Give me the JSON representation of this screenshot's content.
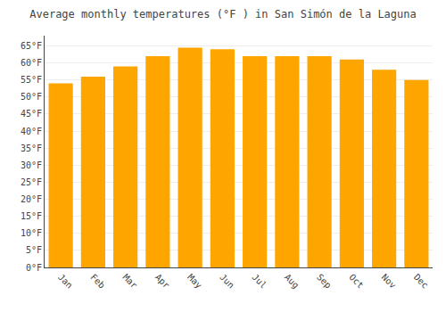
{
  "chart_data": {
    "type": "bar",
    "title": "Average monthly temperatures (°F ) in San Simón de la Laguna",
    "categories": [
      "Jan",
      "Feb",
      "Mar",
      "Apr",
      "May",
      "Jun",
      "Jul",
      "Aug",
      "Sep",
      "Oct",
      "Nov",
      "Dec"
    ],
    "values": [
      54,
      56,
      59,
      62,
      64.5,
      64,
      62,
      62,
      62,
      61,
      58,
      55
    ],
    "color": "#FFA500",
    "ylim": [
      0,
      68
    ],
    "yticks": [
      {
        "value": 0,
        "label": "0°F"
      },
      {
        "value": 5,
        "label": "5°F"
      },
      {
        "value": 10,
        "label": "10°F"
      },
      {
        "value": 15,
        "label": "15°F"
      },
      {
        "value": 20,
        "label": "20°F"
      },
      {
        "value": 25,
        "label": "25°F"
      },
      {
        "value": 30,
        "label": "30°F"
      },
      {
        "value": 35,
        "label": "35°F"
      },
      {
        "value": 40,
        "label": "40°F"
      },
      {
        "value": 45,
        "label": "45°F"
      },
      {
        "value": 50,
        "label": "50°F"
      },
      {
        "value": 55,
        "label": "55°F"
      },
      {
        "value": 60,
        "label": "60°F"
      },
      {
        "value": 65,
        "label": "65°F"
      }
    ],
    "grid": true
  }
}
